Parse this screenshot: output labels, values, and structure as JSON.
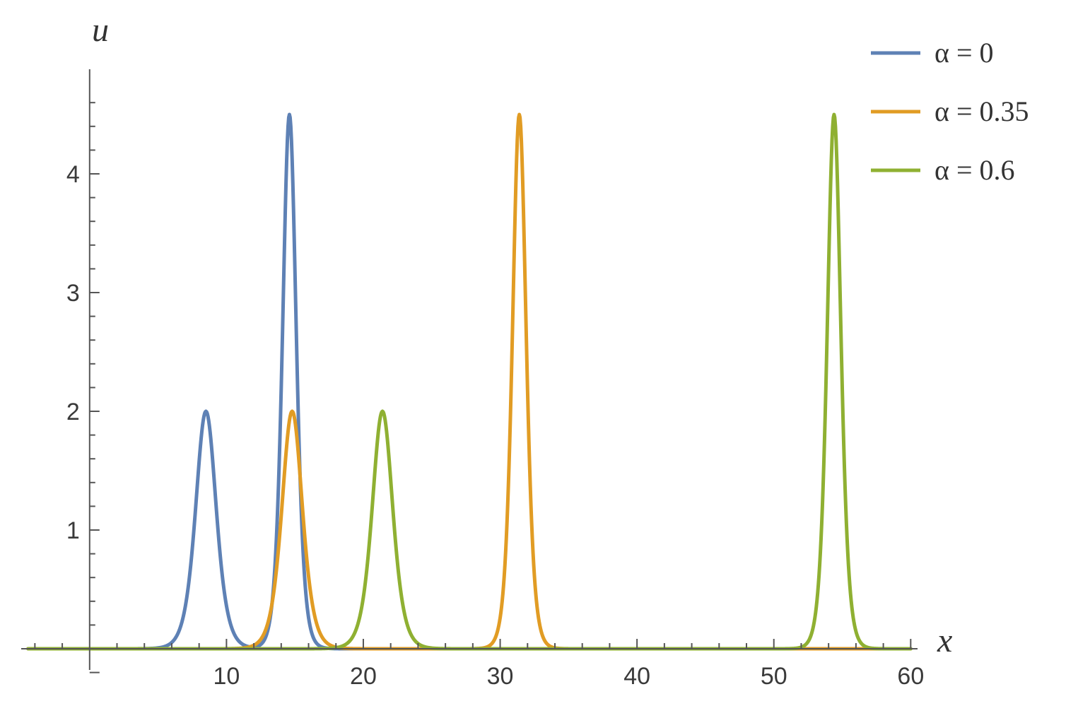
{
  "chart_data": {
    "type": "line",
    "title": "",
    "xlabel": "x",
    "ylabel": "u",
    "xlim": [
      -5,
      60.5
    ],
    "ylim": [
      -0.25,
      4.75
    ],
    "x_ticks": [
      10,
      20,
      30,
      40,
      50,
      60
    ],
    "y_ticks": [
      1,
      2,
      3,
      4
    ],
    "grid": false,
    "legend_position": "top-right",
    "series": [
      {
        "name": "α = 0",
        "color": "#5E81B5",
        "pulses": [
          {
            "center": 8.5,
            "amplitude": 2.0
          },
          {
            "center": 14.6,
            "amplitude": 4.5
          }
        ]
      },
      {
        "name": "α = 0.35",
        "color": "#E19C24",
        "pulses": [
          {
            "center": 14.8,
            "amplitude": 2.0
          },
          {
            "center": 31.4,
            "amplitude": 4.5
          }
        ]
      },
      {
        "name": "α = 0.6",
        "color": "#8FB032",
        "pulses": [
          {
            "center": 21.4,
            "amplitude": 2.0
          },
          {
            "center": 54.4,
            "amplitude": 4.5
          }
        ]
      }
    ]
  }
}
